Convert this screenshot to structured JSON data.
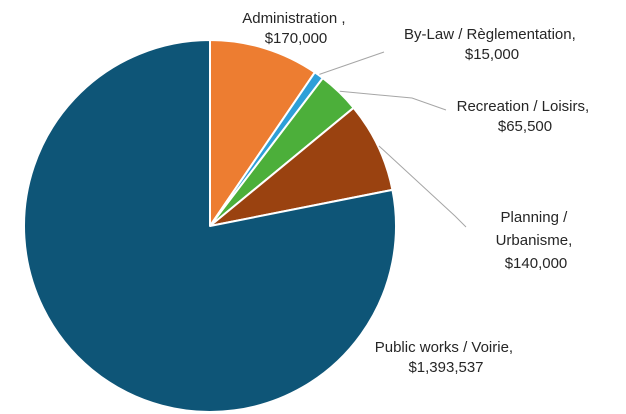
{
  "chart_data": {
    "type": "pie",
    "title": "",
    "slices": [
      {
        "category": "Administration ,",
        "value": 170000,
        "value_label": "$170,000",
        "color": "#ED7D31"
      },
      {
        "category": "By-Law / Règlementation,",
        "value": 15000,
        "value_label": "$15,000",
        "color": "#2E9FD8"
      },
      {
        "category": "Recreation / Loisirs,",
        "value": 65500,
        "value_label": "$65,500",
        "color": "#4CAF3A"
      },
      {
        "category": "Planning / Urbanisme,",
        "value": 140000,
        "value_label": "$140,000",
        "color": "#9A4210"
      },
      {
        "category": "Public works / Voirie,",
        "value": 1393537,
        "value_label": "$1,393,537",
        "color": "#0E5577"
      }
    ],
    "start_angle_deg": 0,
    "direction": "clockwise",
    "legend": "none"
  }
}
